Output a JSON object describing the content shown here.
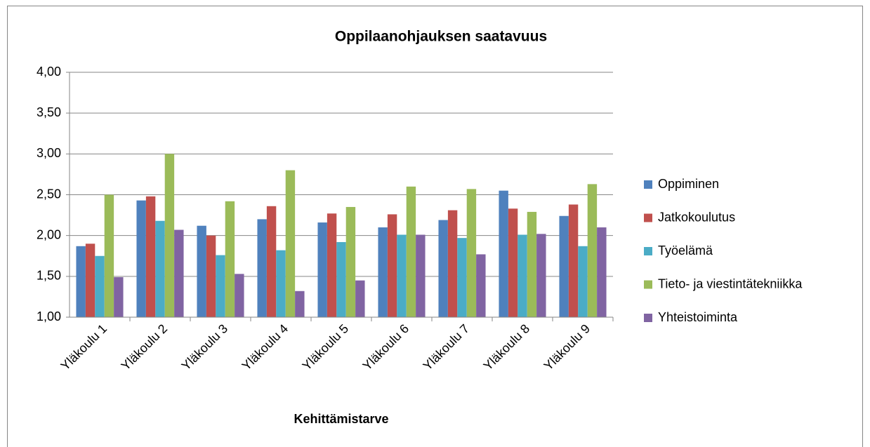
{
  "chart_data": {
    "type": "bar",
    "title": "Oppilaanohjauksen saatavuus",
    "x_label": "Kehittämistarve",
    "categories": [
      "Yläkoulu 1",
      "Yläkoulu 2",
      "Yläkoulu 3",
      "Yläkoulu 4",
      "Yläkoulu 5",
      "Yläkoulu 6",
      "Yläkoulu 7",
      "Yläkoulu 8",
      "Yläkoulu 9"
    ],
    "series": [
      {
        "name": "Oppiminen",
        "color": "#4f81bd",
        "values": [
          1.87,
          2.43,
          2.12,
          2.2,
          2.16,
          2.1,
          2.19,
          2.55,
          2.24
        ]
      },
      {
        "name": "Jatkokoulutus",
        "color": "#c0504d",
        "values": [
          1.9,
          2.48,
          2.0,
          2.36,
          2.27,
          2.26,
          2.31,
          2.33,
          2.38
        ]
      },
      {
        "name": "Työelämä",
        "color": "#4bacc6",
        "values": [
          1.75,
          2.18,
          1.76,
          1.82,
          1.92,
          2.01,
          1.97,
          2.01,
          1.87
        ]
      },
      {
        "name": "Tieto- ja viestintätekniikka",
        "color": "#9bbb59",
        "values": [
          2.5,
          3.0,
          2.42,
          2.8,
          2.35,
          2.6,
          2.57,
          2.29,
          2.63
        ]
      },
      {
        "name": "Yhteistoiminta",
        "color": "#8064a2",
        "values": [
          1.49,
          2.07,
          1.53,
          1.32,
          1.45,
          2.01,
          1.77,
          2.02,
          2.1
        ]
      }
    ],
    "ylim": [
      1,
      4
    ],
    "yticks": [
      {
        "value": 1,
        "label": "1,00"
      },
      {
        "value": 1.5,
        "label": "1,50"
      },
      {
        "value": 2,
        "label": "2,00"
      },
      {
        "value": 2.5,
        "label": "2,50"
      },
      {
        "value": 3,
        "label": "3,00"
      },
      {
        "value": 3.5,
        "label": "3,50"
      },
      {
        "value": 4,
        "label": "4,00"
      }
    ],
    "grid": true,
    "legend": "right"
  }
}
